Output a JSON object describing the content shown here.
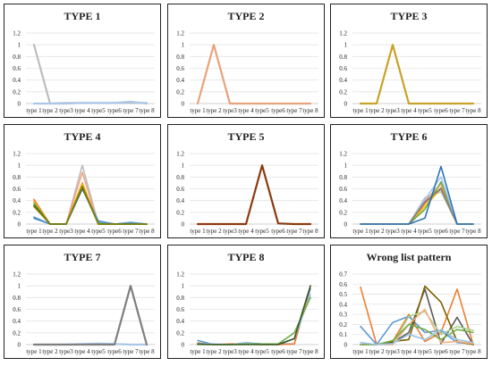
{
  "chart_data": [
    {
      "type": "line",
      "title": "TYPE 1",
      "categories": [
        "type 1",
        "type 2",
        "type3",
        "type 4",
        "type5",
        "type6",
        "type 7",
        "type 8"
      ],
      "ylim": [
        0,
        1.2
      ],
      "yticks": [
        0,
        0.2,
        0.4,
        0.6,
        0.8,
        1,
        1.2
      ],
      "grid": true,
      "series": [
        {
          "color": "#bdbdbd",
          "values": [
            1,
            0,
            0.01,
            0.01,
            0.01,
            0.01,
            0.01,
            0.01
          ]
        },
        {
          "color": "#a9c6e8",
          "values": [
            0,
            0,
            0,
            0.01,
            0.01,
            0.01,
            0.03,
            0
          ]
        }
      ]
    },
    {
      "type": "line",
      "title": "TYPE 2",
      "categories": [
        "type 1",
        "type 2",
        "type3",
        "type 4",
        "type5",
        "type6",
        "type 7",
        "type 8"
      ],
      "ylim": [
        0,
        1.2
      ],
      "yticks": [
        0,
        0.2,
        0.4,
        0.6,
        0.8,
        1,
        1.2
      ],
      "grid": true,
      "series": [
        {
          "color": "#e8a27a",
          "values": [
            0,
            1,
            0,
            0,
            0,
            0,
            0,
            0
          ]
        }
      ]
    },
    {
      "type": "line",
      "title": "TYPE 3",
      "categories": [
        "type 1",
        "type 2",
        "type3",
        "type 4",
        "type5",
        "type6",
        "type 7",
        "type 8"
      ],
      "ylim": [
        0,
        1.2
      ],
      "yticks": [
        0,
        0.2,
        0.4,
        0.6,
        0.8,
        1,
        1.2
      ],
      "grid": true,
      "series": [
        {
          "color": "#c9a227",
          "values": [
            0,
            0,
            1,
            0,
            0,
            0,
            0,
            0
          ]
        }
      ]
    },
    {
      "type": "line",
      "title": "TYPE 4",
      "categories": [
        "type 1",
        "type 2",
        "type3",
        "type 4",
        "type5",
        "type6",
        "type 7",
        "type 8"
      ],
      "ylim": [
        0,
        1.2
      ],
      "yticks": [
        0,
        0.2,
        0.4,
        0.6,
        0.8,
        1,
        1.2
      ],
      "grid": true,
      "series": [
        {
          "color": "#bdbdbd",
          "values": [
            0.3,
            0,
            0,
            1,
            0,
            0,
            0.01,
            0
          ]
        },
        {
          "color": "#f4a582",
          "values": [
            0.4,
            0,
            0,
            0.88,
            0,
            0,
            0,
            0
          ]
        },
        {
          "color": "#ed7d31",
          "values": [
            0.42,
            0,
            0,
            0.7,
            0,
            0,
            0,
            0
          ]
        },
        {
          "color": "#ffc000",
          "values": [
            0.38,
            0,
            0,
            0.68,
            0,
            0,
            0,
            0
          ]
        },
        {
          "color": "#70ad47",
          "values": [
            0.36,
            0,
            0,
            0.65,
            0.01,
            0,
            0,
            0
          ]
        },
        {
          "color": "#2e75b6",
          "values": [
            0.1,
            0,
            0,
            0.6,
            0.05,
            0,
            0.02,
            0
          ]
        },
        {
          "color": "#5b9bd5",
          "values": [
            0.12,
            0,
            0,
            0.62,
            0.04,
            0,
            0.03,
            0
          ]
        },
        {
          "color": "#375623",
          "values": [
            0.32,
            0,
            0,
            0.62,
            0,
            0,
            0,
            0
          ]
        },
        {
          "color": "#808000",
          "values": [
            0.3,
            0,
            0,
            0.64,
            0,
            0,
            0,
            0
          ]
        }
      ]
    },
    {
      "type": "line",
      "title": "TYPE 5",
      "categories": [
        "type 1",
        "type 2",
        "type3",
        "type 4",
        "type5",
        "type6",
        "type 7",
        "type 8"
      ],
      "ylim": [
        0,
        1.2
      ],
      "yticks": [
        0,
        0.2,
        0.4,
        0.6,
        0.8,
        1,
        1.2
      ],
      "grid": true,
      "series": [
        {
          "color": "#8b3a0e",
          "values": [
            0,
            0,
            0,
            0,
            1,
            0.01,
            0,
            0
          ]
        }
      ]
    },
    {
      "type": "line",
      "title": "TYPE 6",
      "categories": [
        "type 1",
        "type 2",
        "type3",
        "type 4",
        "type5",
        "type6",
        "type 7",
        "type 8"
      ],
      "ylim": [
        0,
        1.2
      ],
      "yticks": [
        0,
        0.2,
        0.4,
        0.6,
        0.8,
        1,
        1.2
      ],
      "grid": true,
      "series": [
        {
          "color": "#bdbdbd",
          "values": [
            0,
            0,
            0,
            0,
            0.45,
            0.55,
            0,
            0
          ]
        },
        {
          "color": "#f4a582",
          "values": [
            0,
            0,
            0,
            0,
            0.4,
            0.68,
            0,
            0
          ]
        },
        {
          "color": "#ed7d31",
          "values": [
            0,
            0,
            0,
            0,
            0.35,
            0.62,
            0,
            0
          ]
        },
        {
          "color": "#ffc000",
          "values": [
            0,
            0,
            0,
            0,
            0.3,
            0.6,
            0,
            0
          ]
        },
        {
          "color": "#70ad47",
          "values": [
            0,
            0,
            0,
            0,
            0.25,
            0.72,
            0,
            0
          ]
        },
        {
          "color": "#a9c6e8",
          "values": [
            0,
            0,
            0,
            0,
            0.42,
            0.8,
            0,
            0
          ]
        },
        {
          "color": "#7f7f7f",
          "values": [
            0,
            0,
            0,
            0,
            0.38,
            0.6,
            0,
            0
          ]
        },
        {
          "color": "#2e75b6",
          "values": [
            0,
            0,
            0,
            0,
            0.1,
            0.98,
            0,
            0
          ]
        }
      ]
    },
    {
      "type": "line",
      "title": "TYPE 7",
      "categories": [
        "type 1",
        "type 2",
        "type3",
        "type 4",
        "type5",
        "type6",
        "type 7",
        "type 8"
      ],
      "ylim": [
        0,
        1.2
      ],
      "yticks": [
        0,
        0.2,
        0.4,
        0.6,
        0.8,
        1,
        1.2
      ],
      "grid": true,
      "series": [
        {
          "color": "#a9c6e8",
          "values": [
            0,
            0,
            0,
            0.01,
            0.02,
            0.01,
            0,
            0
          ]
        },
        {
          "color": "#7f7f7f",
          "values": [
            0,
            0,
            0,
            0,
            0,
            0,
            1,
            0
          ]
        }
      ]
    },
    {
      "type": "line",
      "title": "TYPE 8",
      "categories": [
        "type 1",
        "type 2",
        "type3",
        "type 4",
        "type5",
        "type6",
        "type 7",
        "type 8"
      ],
      "ylim": [
        0,
        1.2
      ],
      "yticks": [
        0,
        0.2,
        0.4,
        0.6,
        0.8,
        1,
        1.2
      ],
      "grid": true,
      "series": [
        {
          "color": "#5b9bd5",
          "values": [
            0.07,
            0,
            0,
            0.03,
            0.01,
            0.01,
            0.01,
            0.95
          ]
        },
        {
          "color": "#ed7d31",
          "values": [
            0.03,
            0,
            0.01,
            0.01,
            0,
            0,
            0.01,
            1
          ]
        },
        {
          "color": "#a9c6e8",
          "values": [
            0.02,
            0.01,
            0,
            0.02,
            0.01,
            0.01,
            0.1,
            0.85
          ]
        },
        {
          "color": "#70ad47",
          "values": [
            0,
            0,
            0,
            0.01,
            0.01,
            0.01,
            0.2,
            0.8
          ]
        },
        {
          "color": "#375623",
          "values": [
            0.01,
            0,
            0,
            0,
            0,
            0,
            0.1,
            1
          ]
        }
      ]
    },
    {
      "type": "line",
      "title": "Wrong list pattern",
      "categories": [
        "type 1",
        "type 2",
        "type3",
        "type 4",
        "type5",
        "type6",
        "type 7",
        "type 8"
      ],
      "ylim": [
        0,
        0.7
      ],
      "yticks": [
        0,
        0.1,
        0.2,
        0.3,
        0.4,
        0.5,
        0.6,
        0.7
      ],
      "grid": true,
      "series": [
        {
          "color": "#ed7d31",
          "values": [
            0.57,
            0,
            0.03,
            0.3,
            0.03,
            0.12,
            0.55,
            0
          ]
        },
        {
          "color": "#5b9bd5",
          "values": [
            0.18,
            0,
            0.22,
            0.28,
            0.12,
            0.14,
            0.02,
            0.01
          ]
        },
        {
          "color": "#595959",
          "values": [
            0,
            0,
            0.02,
            0.12,
            0.55,
            0.01,
            0.27,
            0
          ]
        },
        {
          "color": "#806000",
          "values": [
            0,
            0,
            0.03,
            0.05,
            0.58,
            0.42,
            0.03,
            0
          ]
        },
        {
          "color": "#a9d18e",
          "values": [
            0,
            0,
            0,
            0.28,
            0.33,
            0.1,
            0.18,
            0.14
          ]
        },
        {
          "color": "#f4b183",
          "values": [
            0,
            0,
            0,
            0.2,
            0.35,
            0.02,
            0.03,
            0.01
          ]
        },
        {
          "color": "#70ad47",
          "values": [
            0,
            0,
            0.04,
            0.2,
            0.15,
            0.05,
            0.15,
            0.12
          ]
        },
        {
          "color": "#9dc3e6",
          "values": [
            0.02,
            0,
            0.01,
            0.1,
            0.05,
            0.15,
            0.05,
            0.02
          ]
        }
      ]
    }
  ]
}
